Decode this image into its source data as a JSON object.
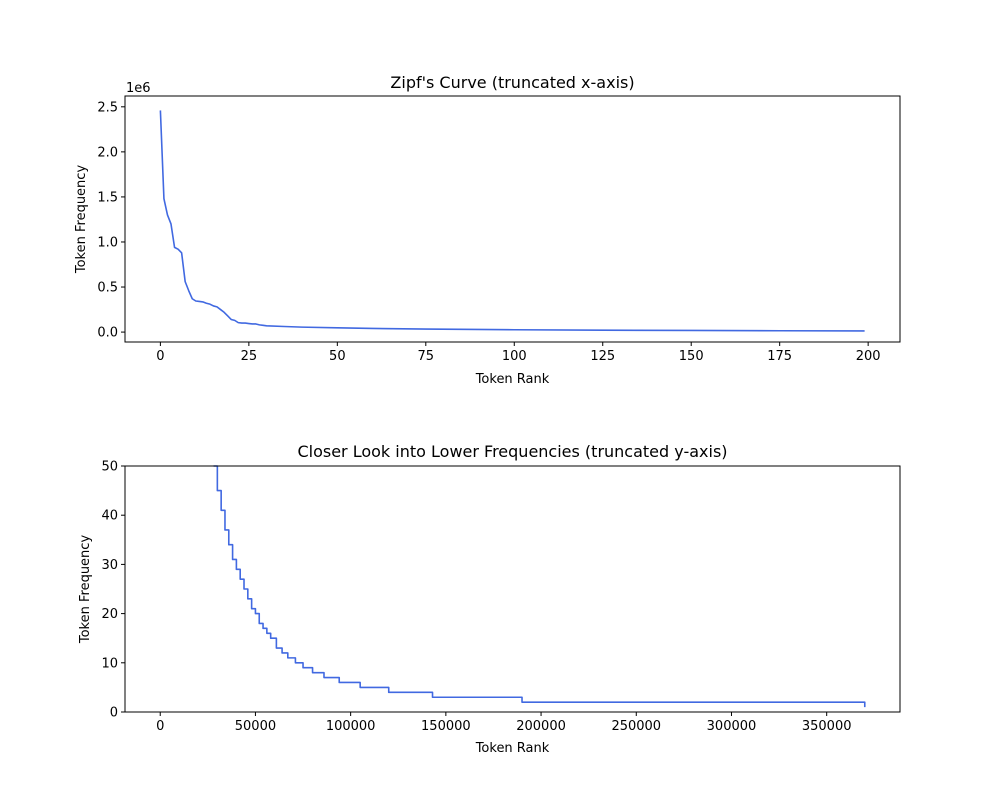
{
  "chart_data": [
    {
      "type": "line",
      "title": "Zipf's Curve (truncated x-axis)",
      "xlabel": "Token Rank",
      "ylabel": "Token Frequency",
      "y_offset_label": "1e6",
      "xlim": [
        -10,
        209
      ],
      "ylim": [
        -0.11,
        2.62
      ],
      "xticks": [
        0,
        25,
        50,
        75,
        100,
        125,
        150,
        175,
        200
      ],
      "xtick_labels": [
        "0",
        "25",
        "50",
        "75",
        "100",
        "125",
        "150",
        "175",
        "200"
      ],
      "yticks": [
        0.0,
        0.5,
        1.0,
        1.5,
        2.0,
        2.5
      ],
      "ytick_labels": [
        "0.0",
        "0.5",
        "1.0",
        "1.5",
        "2.0",
        "2.5"
      ],
      "grid": false,
      "color": "#4169e1",
      "series": [
        {
          "x": [
            0,
            1,
            2,
            3,
            4,
            5,
            6,
            7,
            8,
            9,
            10,
            11,
            12,
            13,
            14,
            15,
            16,
            17,
            18,
            19,
            20,
            21,
            22,
            23,
            24,
            25,
            26,
            27,
            28,
            29,
            30,
            35,
            40,
            50,
            60,
            75,
            100,
            125,
            150,
            175,
            199
          ],
          "y": [
            2.46,
            1.48,
            1.3,
            1.2,
            0.94,
            0.92,
            0.88,
            0.56,
            0.46,
            0.37,
            0.345,
            0.34,
            0.335,
            0.32,
            0.31,
            0.29,
            0.28,
            0.25,
            0.22,
            0.18,
            0.14,
            0.13,
            0.105,
            0.1,
            0.1,
            0.095,
            0.09,
            0.09,
            0.08,
            0.075,
            0.07,
            0.062,
            0.055,
            0.047,
            0.04,
            0.033,
            0.026,
            0.021,
            0.018,
            0.015,
            0.013
          ]
        }
      ]
    },
    {
      "type": "line",
      "title": "Closer Look into Lower Frequencies (truncated y-axis)",
      "xlabel": "Token Rank",
      "ylabel": "Token Frequency",
      "xlim": [
        -18500,
        388500
      ],
      "ylim": [
        0,
        50
      ],
      "xticks": [
        0,
        50000,
        100000,
        150000,
        200000,
        250000,
        300000,
        350000
      ],
      "xtick_labels": [
        "0",
        "50000",
        "100000",
        "150000",
        "200000",
        "250000",
        "300000",
        "350000"
      ],
      "yticks": [
        0,
        10,
        20,
        30,
        40,
        50
      ],
      "ytick_labels": [
        "0",
        "10",
        "20",
        "30",
        "40",
        "50"
      ],
      "grid": false,
      "color": "#4169e1",
      "step_line": true,
      "series": [
        {
          "x": [
            28000,
            30000,
            32000,
            34000,
            36000,
            38000,
            40000,
            42000,
            44000,
            46000,
            48000,
            50000,
            52000,
            54000,
            56000,
            58000,
            61000,
            64000,
            67000,
            71000,
            75000,
            80000,
            86000,
            94000,
            105000,
            120000,
            143000,
            190000,
            370000
          ],
          "y": [
            50,
            45,
            41,
            37,
            34,
            31,
            29,
            27,
            25,
            23,
            21,
            20,
            18,
            17,
            16,
            15,
            13,
            12,
            11,
            10,
            9,
            8,
            7,
            6,
            5,
            4,
            3,
            2,
            1
          ]
        }
      ]
    }
  ]
}
